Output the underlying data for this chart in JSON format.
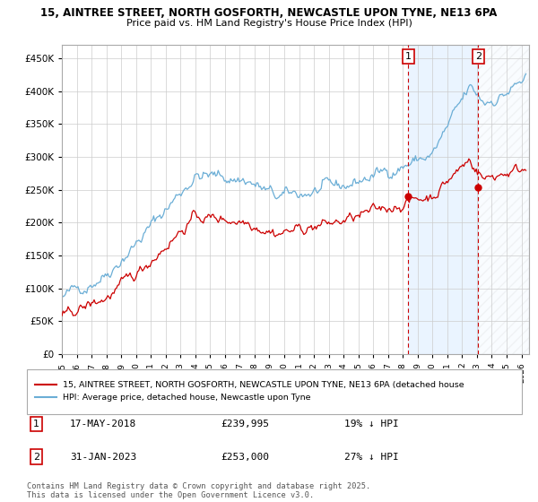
{
  "title_line1": "15, AINTREE STREET, NORTH GOSFORTH, NEWCASTLE UPON TYNE, NE13 6PA",
  "title_line2": "Price paid vs. HM Land Registry's House Price Index (HPI)",
  "background_color": "#ffffff",
  "grid_color": "#cccccc",
  "hpi_color": "#6baed6",
  "hpi_fill_color": "#ddeeff",
  "price_color": "#cc0000",
  "annotation_color": "#cc0000",
  "legend_label_price": "15, AINTREE STREET, NORTH GOSFORTH, NEWCASTLE UPON TYNE, NE13 6PA (detached house",
  "legend_label_hpi": "HPI: Average price, detached house, Newcastle upon Tyne",
  "sale1_date": "17-MAY-2018",
  "sale1_price": 239995,
  "sale1_label": "£239,995",
  "sale1_note": "19% ↓ HPI",
  "sale1_x": 2018.37,
  "sale2_date": "31-JAN-2023",
  "sale2_price": 253000,
  "sale2_label": "£253,000",
  "sale2_note": "27% ↓ HPI",
  "sale2_x": 2023.08,
  "footer": "Contains HM Land Registry data © Crown copyright and database right 2025.\nThis data is licensed under the Open Government Licence v3.0.",
  "ylim_max": 470000,
  "ylim_min": 0,
  "xmin": 1995,
  "xmax": 2026.5
}
